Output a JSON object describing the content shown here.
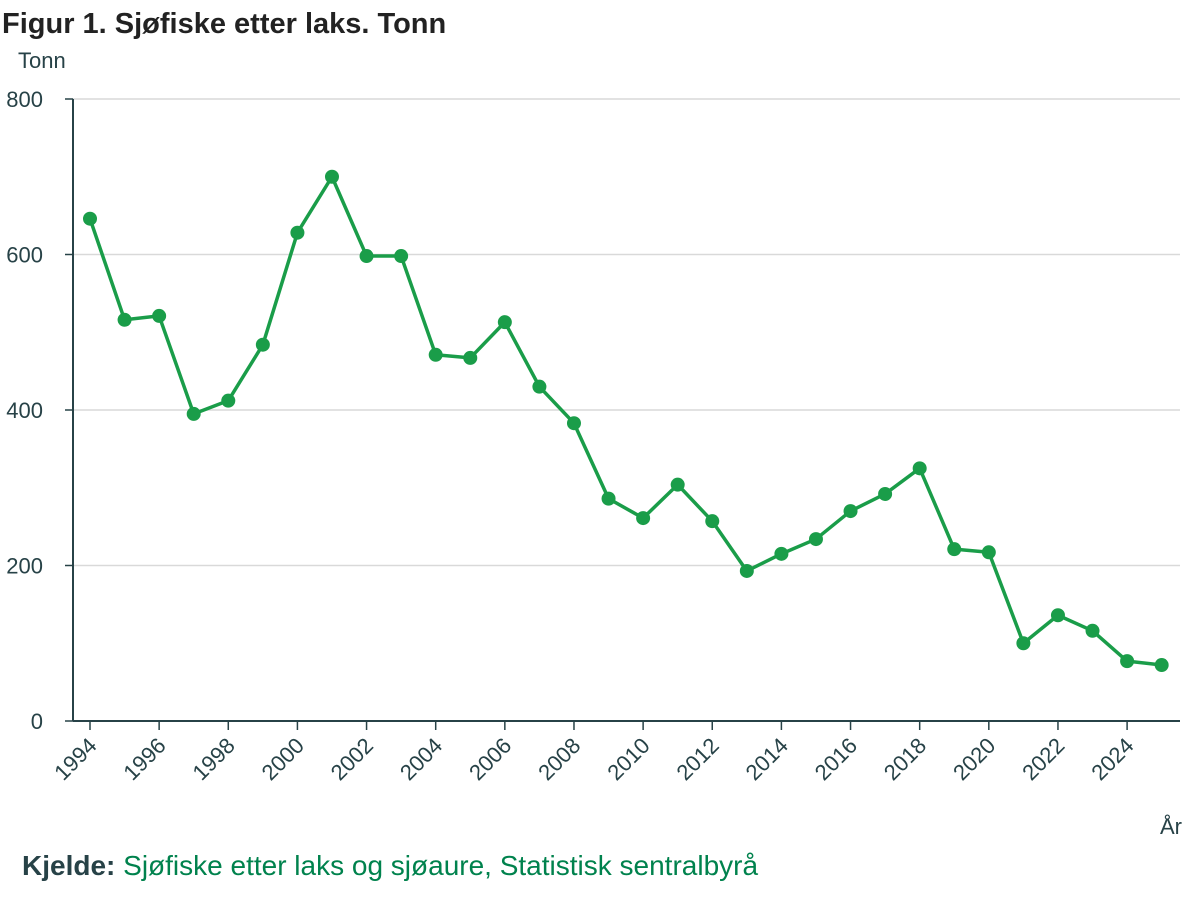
{
  "chart_data": {
    "type": "line",
    "title": "Figur 1. Sjøfiske etter laks. Tonn",
    "ylabel": "Tonn",
    "xlabel": "År",
    "ylim": [
      0,
      800
    ],
    "yticks": [
      0,
      200,
      400,
      600,
      800
    ],
    "xticks": [
      1994,
      1996,
      1998,
      2000,
      2002,
      2004,
      2006,
      2008,
      2010,
      2012,
      2014,
      2016,
      2018,
      2020,
      2022,
      2024
    ],
    "grid": true,
    "series": [
      {
        "name": "Sjøfiske etter laks",
        "color": "#1a9d49",
        "x": [
          1994,
          1995,
          1996,
          1997,
          1998,
          1999,
          2000,
          2001,
          2002,
          2003,
          2004,
          2005,
          2006,
          2007,
          2008,
          2009,
          2010,
          2011,
          2012,
          2013,
          2014,
          2015,
          2016,
          2017,
          2018,
          2019,
          2020,
          2021,
          2022,
          2023,
          2024,
          2025
        ],
        "values": [
          646,
          516,
          521,
          395,
          412,
          484,
          628,
          700,
          598,
          598,
          471,
          467,
          513,
          430,
          383,
          286,
          261,
          304,
          257,
          193,
          215,
          234,
          270,
          292,
          325,
          221,
          217,
          100,
          136,
          116,
          77,
          72
        ]
      }
    ]
  },
  "source": {
    "label": "Kjelde:",
    "text": "Sjøfiske etter laks og sjøaure, Statistisk sentralbyrå"
  }
}
